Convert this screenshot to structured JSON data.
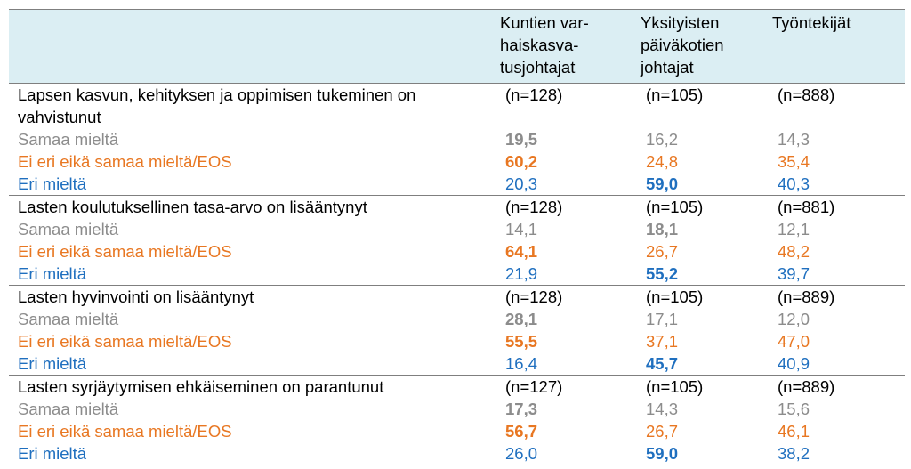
{
  "header": {
    "col1": "Kuntien var-\nhaiskasva-\ntusjohtajat",
    "col2": "Yksityisten\npäiväkotien\njohtajat",
    "col3": "Työntekijät"
  },
  "colors": {
    "header_bg": "#dbeef3",
    "agree": "#8c8c8c",
    "neutral": "#e87722",
    "disagree": "#1f6fbf",
    "rule": "#7f7f7f"
  },
  "labels": {
    "agree": "Samaa mieltä",
    "neutral": "Ei eri eikä samaa mieltä/EOS",
    "disagree": "Eri mieltä"
  },
  "sections": [
    {
      "question": "Lapsen kasvun, kehityksen ja oppimisen tukeminen on vahvistunut",
      "n": [
        "(n=128)",
        "(n=105)",
        "(n=888)"
      ],
      "agree": [
        "19,5",
        "16,2",
        "14,3"
      ],
      "neutral": [
        "60,2",
        "24,8",
        "35,4"
      ],
      "disagree": [
        "20,3",
        "59,0",
        "40,3"
      ]
    },
    {
      "question": "Lasten koulutuksellinen tasa-arvo on lisääntynyt",
      "n": [
        "(n=128)",
        "(n=105)",
        "(n=881)"
      ],
      "agree": [
        "14,1",
        "18,1",
        "12,1"
      ],
      "neutral": [
        "64,1",
        "26,7",
        "48,2"
      ],
      "disagree": [
        "21,9",
        "55,2",
        "39,7"
      ]
    },
    {
      "question": "Lasten hyvinvointi on lisääntynyt",
      "n": [
        "(n=128)",
        "(n=105)",
        "(n=889)"
      ],
      "agree": [
        "28,1",
        "17,1",
        "12,0"
      ],
      "neutral": [
        "55,5",
        "37,1",
        "47,0"
      ],
      "disagree": [
        "16,4",
        "45,7",
        "40,9"
      ]
    },
    {
      "question": "Lasten syrjäytymisen ehkäiseminen on parantunut",
      "n": [
        "(n=127)",
        "(n=105)",
        "(n=889)"
      ],
      "agree": [
        "17,3",
        "14,3",
        "15,6"
      ],
      "neutral": [
        "56,7",
        "26,7",
        "46,1"
      ],
      "disagree": [
        "26,0",
        "59,0",
        "38,2"
      ]
    }
  ]
}
